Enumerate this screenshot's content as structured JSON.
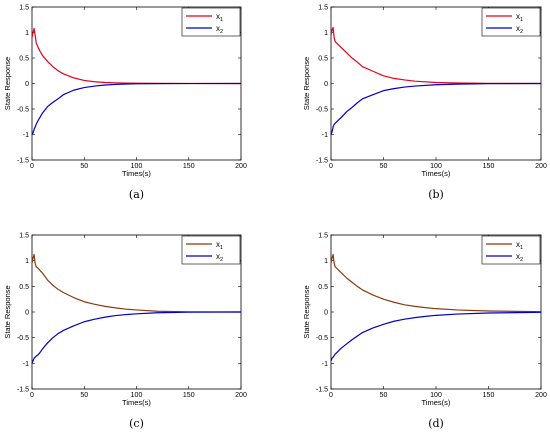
{
  "chart_data": [
    {
      "type": "line",
      "caption": "(a)",
      "xlabel": "Times(s)",
      "ylabel": "State Response",
      "xlim": [
        0,
        200
      ],
      "ylim": [
        -1.5,
        1.5
      ],
      "xticks": [
        "0",
        "50",
        "100",
        "150",
        "200"
      ],
      "yticks": [
        "1.5",
        "1",
        "0.5",
        "0",
        "-0.5",
        "-1",
        "-1.5"
      ],
      "legend": "top-right",
      "series": [
        {
          "name": "x",
          "sub": "1",
          "color": "#e8001c",
          "x": [
            0,
            1,
            2,
            3,
            4,
            6,
            8,
            10,
            15,
            20,
            25,
            30,
            40,
            50,
            60,
            70,
            80,
            90,
            100,
            120,
            150,
            200
          ],
          "y": [
            0.9,
            1.0,
            1.08,
            0.95,
            0.8,
            0.7,
            0.62,
            0.55,
            0.43,
            0.33,
            0.25,
            0.19,
            0.11,
            0.06,
            0.035,
            0.02,
            0.012,
            0.008,
            0.005,
            0.002,
            0.001,
            0
          ]
        },
        {
          "name": "x",
          "sub": "2",
          "color": "#0000c8",
          "x": [
            0,
            1,
            2,
            3,
            4,
            6,
            8,
            10,
            15,
            20,
            25,
            30,
            40,
            50,
            60,
            70,
            80,
            90,
            100,
            120,
            150,
            200
          ],
          "y": [
            -1.0,
            -0.97,
            -0.9,
            -0.85,
            -0.8,
            -0.72,
            -0.65,
            -0.58,
            -0.45,
            -0.37,
            -0.3,
            -0.22,
            -0.13,
            -0.08,
            -0.05,
            -0.03,
            -0.018,
            -0.01,
            -0.006,
            -0.003,
            -0.001,
            0
          ]
        }
      ]
    },
    {
      "type": "line",
      "caption": "(b)",
      "xlabel": "Times(s)",
      "ylabel": "State Response",
      "xlim": [
        0,
        200
      ],
      "ylim": [
        -1.5,
        1.5
      ],
      "xticks": [
        "0",
        "50",
        "100",
        "150",
        "200"
      ],
      "yticks": [
        "1.5",
        "1",
        "0.5",
        "0",
        "-0.5",
        "-1",
        "-1.5"
      ],
      "legend": "top-right",
      "series": [
        {
          "name": "x",
          "sub": "1",
          "color": "#e8001c",
          "x": [
            0,
            1,
            2,
            3,
            4,
            6,
            8,
            10,
            15,
            20,
            25,
            30,
            40,
            50,
            60,
            70,
            80,
            100,
            120,
            150,
            200
          ],
          "y": [
            0.95,
            1.05,
            1.1,
            0.9,
            0.82,
            0.78,
            0.74,
            0.7,
            0.6,
            0.5,
            0.42,
            0.33,
            0.24,
            0.15,
            0.1,
            0.07,
            0.045,
            0.02,
            0.01,
            0.003,
            0
          ]
        },
        {
          "name": "x",
          "sub": "2",
          "color": "#0000c8",
          "x": [
            0,
            1,
            2,
            3,
            4,
            6,
            8,
            10,
            15,
            20,
            25,
            30,
            40,
            50,
            60,
            70,
            80,
            100,
            120,
            150,
            200
          ],
          "y": [
            -1.0,
            -0.95,
            -0.85,
            -0.8,
            -0.78,
            -0.74,
            -0.7,
            -0.66,
            -0.55,
            -0.47,
            -0.38,
            -0.3,
            -0.22,
            -0.14,
            -0.1,
            -0.07,
            -0.05,
            -0.025,
            -0.012,
            -0.004,
            0
          ]
        }
      ]
    },
    {
      "type": "line",
      "caption": "(c)",
      "xlabel": "Times(s)",
      "ylabel": "State Response",
      "xlim": [
        0,
        200
      ],
      "ylim": [
        -1.5,
        1.5
      ],
      "xticks": [
        "0",
        "50",
        "100",
        "150",
        "200"
      ],
      "yticks": [
        "1.5",
        "1",
        "0.5",
        "0",
        "-0.5",
        "-1",
        "-1.5"
      ],
      "legend": "top-right",
      "series": [
        {
          "name": "x",
          "sub": "1",
          "color": "#8b3a0f",
          "x": [
            0,
            1,
            2,
            3,
            4,
            6,
            8,
            10,
            15,
            20,
            25,
            30,
            40,
            50,
            60,
            70,
            80,
            90,
            100,
            120,
            150,
            200
          ],
          "y": [
            0.95,
            1.05,
            1.12,
            0.95,
            0.88,
            0.85,
            0.8,
            0.76,
            0.62,
            0.52,
            0.44,
            0.38,
            0.28,
            0.2,
            0.15,
            0.11,
            0.08,
            0.055,
            0.04,
            0.015,
            0.004,
            0
          ]
        },
        {
          "name": "x",
          "sub": "2",
          "color": "#0000c8",
          "x": [
            0,
            1,
            2,
            3,
            4,
            6,
            8,
            10,
            15,
            20,
            25,
            30,
            40,
            50,
            60,
            70,
            80,
            90,
            100,
            120,
            150,
            200
          ],
          "y": [
            -1.0,
            -0.95,
            -0.9,
            -0.88,
            -0.86,
            -0.83,
            -0.78,
            -0.72,
            -0.6,
            -0.5,
            -0.42,
            -0.36,
            -0.27,
            -0.19,
            -0.14,
            -0.1,
            -0.07,
            -0.05,
            -0.035,
            -0.015,
            -0.004,
            0
          ]
        }
      ]
    },
    {
      "type": "line",
      "caption": "(d)",
      "xlabel": "Times(s)",
      "ylabel": "State Response",
      "xlim": [
        0,
        200
      ],
      "ylim": [
        -1.5,
        1.5
      ],
      "xticks": [
        "0",
        "50",
        "100",
        "150",
        "200"
      ],
      "yticks": [
        "1.5",
        "1",
        "0.5",
        "0",
        "-0.5",
        "-1",
        "-1.5"
      ],
      "legend": "top-right",
      "series": [
        {
          "name": "x",
          "sub": "1",
          "color": "#8b3a0f",
          "x": [
            0,
            1,
            2,
            3,
            4,
            6,
            8,
            10,
            15,
            20,
            25,
            30,
            40,
            50,
            60,
            70,
            80,
            90,
            100,
            120,
            150,
            200
          ],
          "y": [
            0.95,
            1.05,
            1.12,
            0.95,
            0.88,
            0.84,
            0.8,
            0.76,
            0.66,
            0.58,
            0.5,
            0.43,
            0.33,
            0.25,
            0.19,
            0.14,
            0.11,
            0.085,
            0.065,
            0.04,
            0.02,
            0.005
          ]
        },
        {
          "name": "x",
          "sub": "2",
          "color": "#0000c8",
          "x": [
            0,
            1,
            2,
            3,
            4,
            6,
            8,
            10,
            15,
            20,
            25,
            30,
            40,
            50,
            60,
            70,
            80,
            90,
            100,
            120,
            150,
            200
          ],
          "y": [
            -0.95,
            -0.9,
            -0.88,
            -0.85,
            -0.82,
            -0.78,
            -0.74,
            -0.7,
            -0.62,
            -0.54,
            -0.47,
            -0.4,
            -0.31,
            -0.24,
            -0.18,
            -0.14,
            -0.11,
            -0.085,
            -0.065,
            -0.04,
            -0.02,
            -0.005
          ]
        }
      ]
    }
  ]
}
